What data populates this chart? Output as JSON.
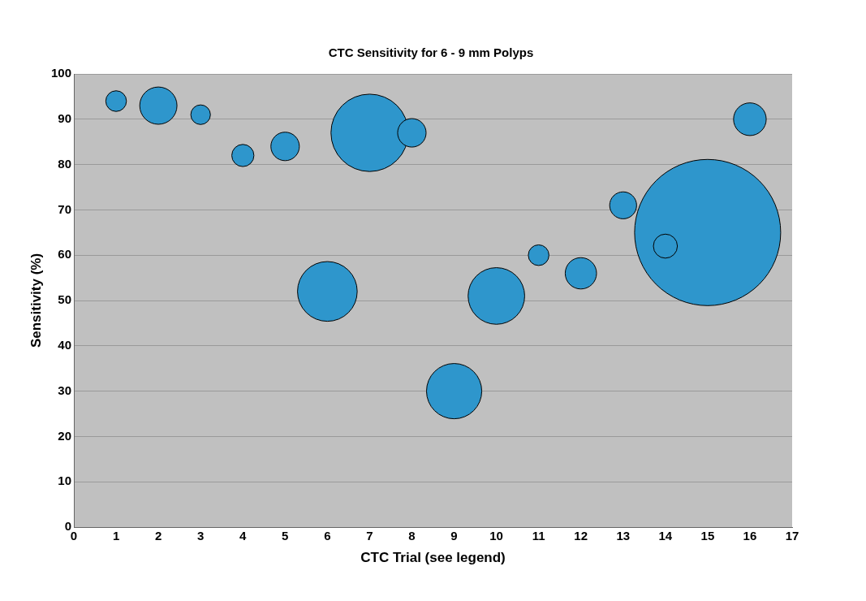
{
  "chart_data": {
    "type": "bubble",
    "title": "CTC Sensitivity for 6 - 9 mm Polyps",
    "xlabel": "CTC Trial (see legend)",
    "ylabel": "Sensitivity (%)",
    "x": [
      1,
      2,
      3,
      4,
      5,
      6,
      7,
      8,
      9,
      10,
      11,
      12,
      13,
      14,
      15,
      16
    ],
    "values": [
      94,
      93,
      91,
      82,
      84,
      52,
      87,
      87,
      30,
      51,
      60,
      56,
      71,
      62,
      65,
      90
    ],
    "sizes": [
      0.02,
      0.065,
      0.018,
      0.023,
      0.038,
      0.167,
      0.28,
      0.038,
      0.143,
      0.15,
      0.02,
      0.046,
      0.034,
      0.027,
      1,
      0.05
    ],
    "color": "#2e96cc",
    "xlim": [
      0,
      17
    ],
    "xticks": [
      0,
      1,
      2,
      3,
      4,
      5,
      6,
      7,
      8,
      9,
      10,
      11,
      12,
      13,
      14,
      15,
      16,
      17
    ],
    "ylim": [
      0,
      100
    ],
    "yticks": [
      0,
      10,
      20,
      30,
      40,
      50,
      60,
      70,
      80,
      90,
      100
    ],
    "grid": "y",
    "legend": false
  }
}
